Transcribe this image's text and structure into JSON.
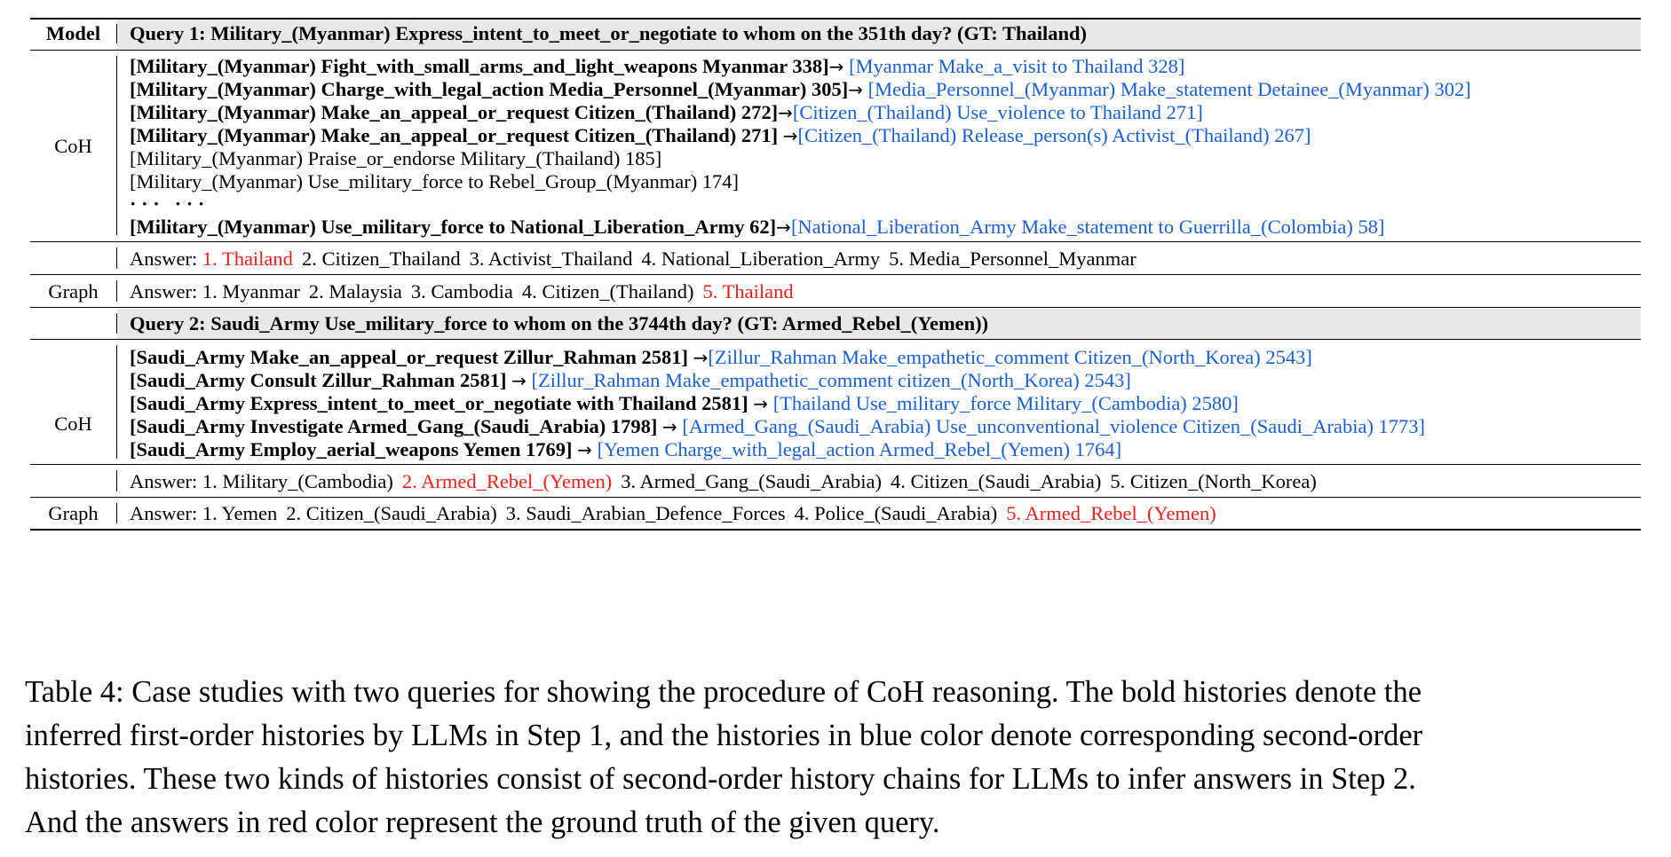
{
  "table": {
    "model_header": "Model",
    "arrow": "→",
    "query1": {
      "title": "Query 1: Military_(Myanmar) Express_intent_to_meet_or_negotiate to whom on the 351th day? (GT: Thailand)",
      "coh_label": "CoH",
      "histories": [
        {
          "first": "[Military_(Myanmar) Fight_with_small_arms_and_light_weapons Myanmar 338]",
          "second": "[Myanmar Make_a_visit to Thailand 328]"
        },
        {
          "first": "[Military_(Myanmar) Charge_with_legal_action Media_Personnel_(Myanmar) 305]",
          "second": "[Media_Personnel_(Myanmar) Make_statement Detainee_(Myanmar) 302]"
        },
        {
          "first": "[Military_(Myanmar) Make_an_appeal_or_request Citizen_(Thailand) 272]",
          "second": "[Citizen_(Thailand) Use_violence to Thailand 271]"
        },
        {
          "first": "[Military_(Myanmar) Make_an_appeal_or_request Citizen_(Thailand) 271]",
          "second": "[Citizen_(Thailand) Release_person(s) Activist_(Thailand) 267]"
        }
      ],
      "plain_histories": [
        "[Military_(Myanmar) Praise_or_endorse Military_(Thailand) 185]",
        "[Military_(Myanmar) Use_military_force to Rebel_Group_(Myanmar) 174]"
      ],
      "ellipsis": "· · ·   · · ·",
      "last_history": {
        "first": "[Military_(Myanmar) Use_military_force to National_Liberation_Army 62]",
        "second": "[National_Liberation_Army Make_statement to Guerrilla_(Colombia) 58]"
      },
      "coh_answer": {
        "label": "Answer:",
        "items": [
          "1. Thailand",
          "2. Citizen_Thailand",
          "3. Activist_Thailand",
          "4. National_Liberation_Army",
          "5. Media_Personnel_Myanmar"
        ],
        "highlight_color": "#e8221b"
      },
      "graph_label": "Graph",
      "graph_answer": {
        "label": "Answer:",
        "items": [
          "1. Myanmar",
          "2. Malaysia",
          "3. Cambodia",
          "4. Citizen_(Thailand)",
          "5. Thailand"
        ]
      }
    },
    "query2": {
      "title": "Query 2: Saudi_Army Use_military_force to whom on the 3744th day? (GT: Armed_Rebel_(Yemen))",
      "coh_label": "CoH",
      "histories": [
        {
          "first": "[Saudi_Army Make_an_appeal_or_request Zillur_Rahman 2581]",
          "second": "[Zillur_Rahman Make_empathetic_comment Citizen_(North_Korea) 2543]"
        },
        {
          "first": "[Saudi_Army Consult Zillur_Rahman 2581]",
          "second": "[Zillur_Rahman Make_empathetic_comment citizen_(North_Korea) 2543]"
        },
        {
          "first": "[Saudi_Army Express_intent_to_meet_or_negotiate with Thailand 2581]",
          "second": "[Thailand Use_military_force Military_(Cambodia) 2580]"
        },
        {
          "first": "[Saudi_Army Investigate Armed_Gang_(Saudi_Arabia) 1798]",
          "second": "[Armed_Gang_(Saudi_Arabia) Use_unconventional_violence Citizen_(Saudi_Arabia) 1773]"
        },
        {
          "first": "[Saudi_Army Employ_aerial_weapons Yemen 1769]",
          "second": "[Yemen Charge_with_legal_action Armed_Rebel_(Yemen) 1764]"
        }
      ],
      "coh_answer": {
        "label": "Answer:",
        "items": [
          "1. Military_(Cambodia)",
          "2. Armed_Rebel_(Yemen)",
          "3. Armed_Gang_(Saudi_Arabia)",
          "4. Citizen_(Saudi_Arabia)",
          "5. Citizen_(North_Korea)"
        ]
      },
      "graph_label": "Graph",
      "graph_answer": {
        "label": "Answer:",
        "items": [
          "1. Yemen",
          "2. Citizen_(Saudi_Arabia)",
          "3. Saudi_Arabian_Defence_Forces",
          "4. Police_(Saudi_Arabia)",
          "5. Armed_Rebel_(Yemen)"
        ]
      }
    },
    "colors": {
      "first_order": "#000000",
      "second_order": "#1a5fd6",
      "ground_truth": "#e8221b"
    }
  },
  "caption": [
    "Table 4: Case studies with two queries for showing the procedure of CoH reasoning. The bold histories denote the",
    "inferred first-order histories by LLMs in Step 1, and the histories in blue color denote corresponding second-order",
    "histories. These two kinds of histories consist of second-order history chains for LLMs to infer answers in Step 2.",
    "And the answers in red color represent the ground truth of the given query."
  ]
}
